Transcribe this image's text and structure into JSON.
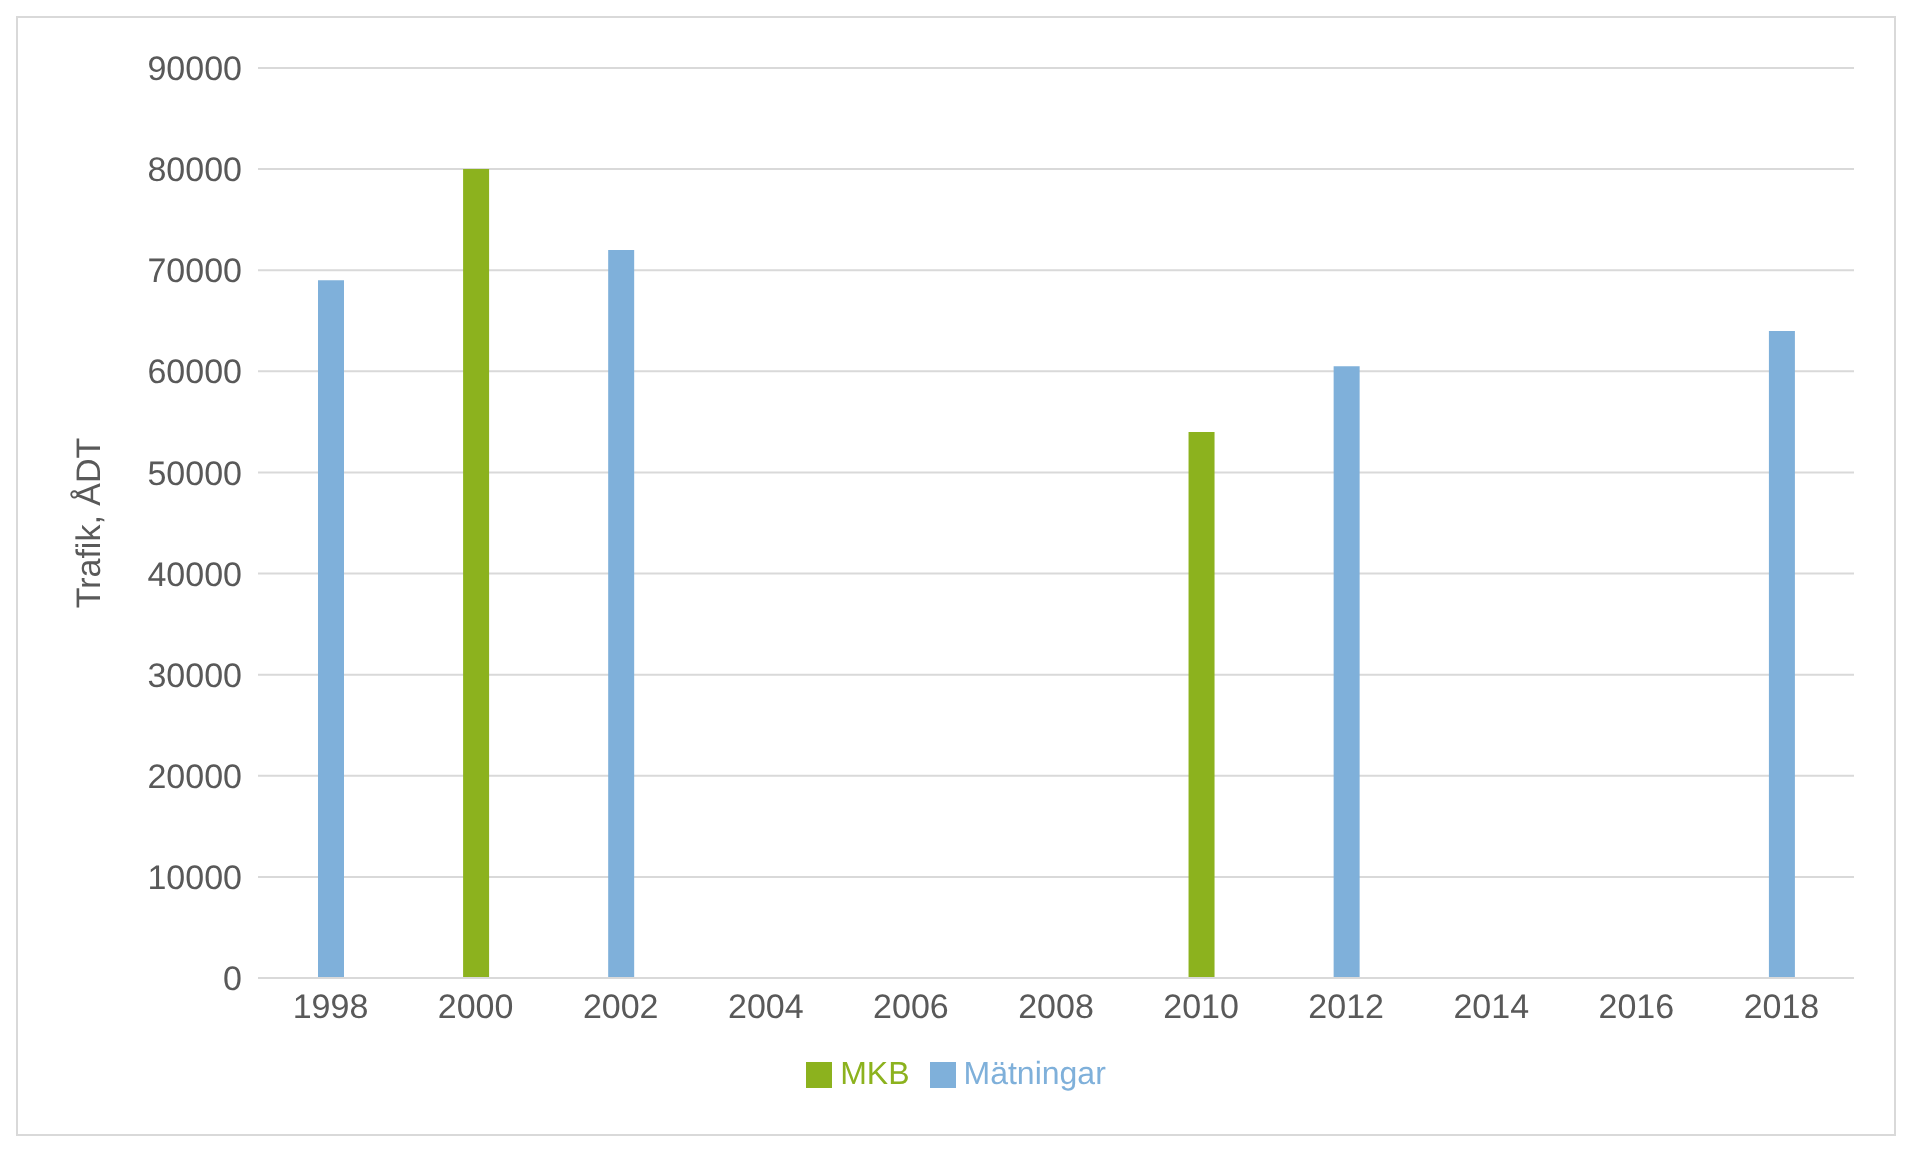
{
  "chart_data": {
    "type": "bar",
    "ylabel": "Trafik, ÅDT",
    "categories": [
      "1998",
      "2000",
      "2002",
      "2004",
      "2006",
      "2008",
      "2010",
      "2012",
      "2014",
      "2016",
      "2018"
    ],
    "series": [
      {
        "name": "Mätningar",
        "color": "#7fb0da",
        "values": [
          69000,
          null,
          72000,
          null,
          null,
          null,
          null,
          60500,
          null,
          null,
          64000
        ]
      },
      {
        "name": "MKB",
        "color": "#8cb21e",
        "values": [
          null,
          80000,
          null,
          null,
          null,
          null,
          54000,
          null,
          null,
          null,
          null
        ]
      }
    ],
    "stacked": true,
    "ylim": [
      0,
      90000
    ],
    "yticks": [
      0,
      10000,
      20000,
      30000,
      40000,
      50000,
      60000,
      70000,
      80000,
      90000
    ],
    "grid": "y",
    "legend": "bottom"
  }
}
